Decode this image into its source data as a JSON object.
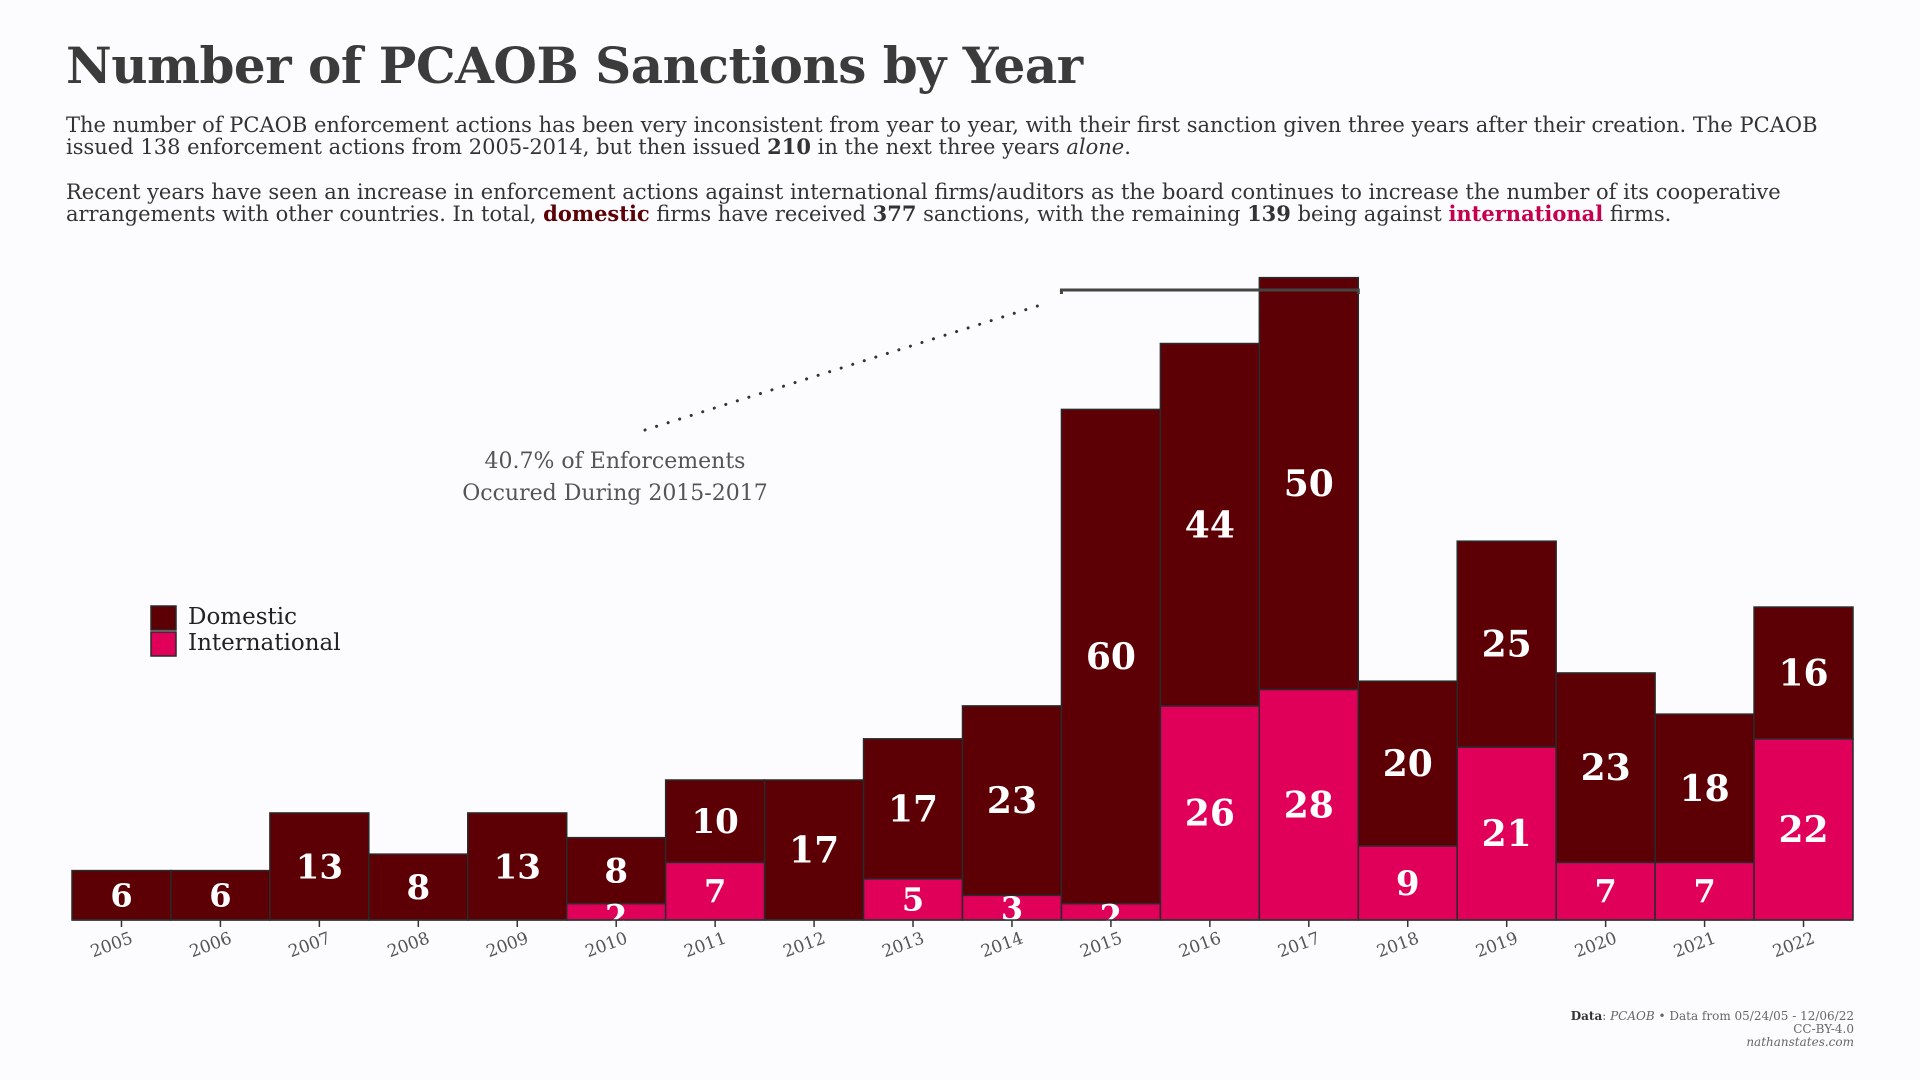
{
  "title": "Number of PCAOB Sanctions by Year",
  "paragraph1": {
    "t1": "The number of PCAOB enforcement actions has been very inconsistent from year to year, with their first sanction given three years after their creation. The PCAOB issued 138 enforcement actions from 2005-2014, but then issued ",
    "b1": "210",
    "t2": " in the next three years ",
    "em": "alone",
    "t3": "."
  },
  "paragraph2": {
    "t1": "Recent years have seen an increase in enforcement actions against international firms/auditors as the board continues to increase the number of its cooperative arrangements with other countries. In total, ",
    "domestic": "domestic",
    "t2": " firms have received ",
    "b1": "377",
    "t3": " sanctions, with the remaining ",
    "b2": "139",
    "t4": " being against ",
    "international": "international",
    "t5": " firms."
  },
  "annotation": {
    "line1": "40.7% of Enforcements",
    "line2": "Occured During 2015-2017"
  },
  "legend": {
    "domestic": "Domestic",
    "international": "International"
  },
  "colors": {
    "domestic": "#5c0005",
    "international": "#e0005a",
    "stroke": "#2a2a2a"
  },
  "footer": {
    "data_label": "Data",
    "source": "PCAOB",
    "range": " • Data from 05/24/05 - 12/06/22",
    "license": "CC-BY-4.0",
    "site": "nathanstates.com"
  },
  "chart_data": {
    "type": "bar",
    "stacked": true,
    "categories": [
      "2005",
      "2006",
      "2007",
      "2008",
      "2009",
      "2010",
      "2011",
      "2012",
      "2013",
      "2014",
      "2015",
      "2016",
      "2017",
      "2018",
      "2019",
      "2020",
      "2021",
      "2022"
    ],
    "series": [
      {
        "name": "Domestic",
        "values": [
          6,
          6,
          13,
          8,
          13,
          8,
          10,
          17,
          17,
          23,
          60,
          44,
          50,
          20,
          25,
          23,
          18,
          16
        ]
      },
      {
        "name": "International",
        "values": [
          0,
          0,
          0,
          0,
          0,
          2,
          7,
          0,
          5,
          3,
          2,
          26,
          28,
          9,
          21,
          7,
          7,
          22
        ]
      }
    ],
    "title": "Number of PCAOB Sanctions by Year",
    "xlabel": "",
    "ylabel": "",
    "ylim": [
      0,
      78
    ],
    "grid": false,
    "legend_position": "left"
  }
}
